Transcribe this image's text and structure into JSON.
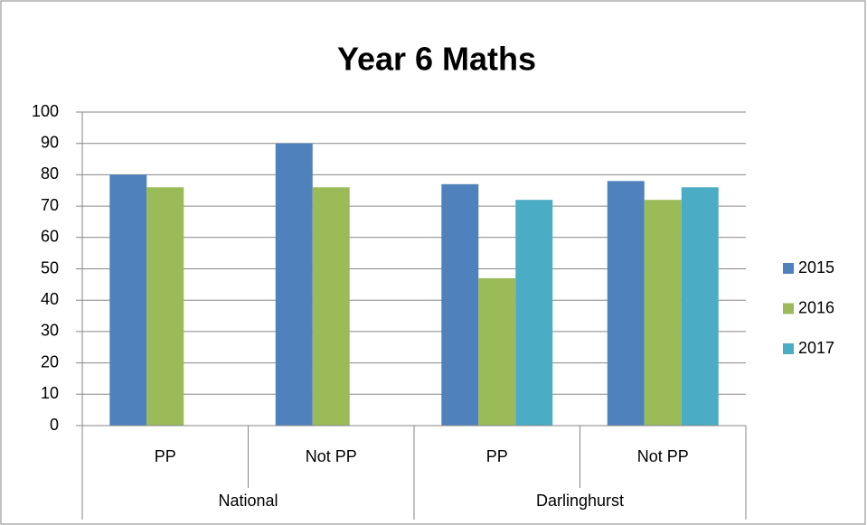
{
  "chart_data": {
    "type": "bar",
    "title": "Year 6 Maths",
    "groups": [
      {
        "name": "National",
        "categories": [
          "PP",
          "Not PP"
        ]
      },
      {
        "name": "Darlinghurst",
        "categories": [
          "PP",
          "Not PP"
        ]
      }
    ],
    "series": [
      {
        "name": "2015",
        "color": "#4f81bd",
        "values": [
          80,
          90,
          77,
          78
        ]
      },
      {
        "name": "2016",
        "color": "#9bbb59",
        "values": [
          76,
          76,
          47,
          72
        ]
      },
      {
        "name": "2017",
        "color": "#4bacc6",
        "values": [
          null,
          null,
          72,
          76
        ]
      }
    ],
    "ylim": [
      0,
      100
    ],
    "yticks": [
      0,
      10,
      20,
      30,
      40,
      50,
      60,
      70,
      80,
      90,
      100
    ],
    "grid": true,
    "legend": "right"
  }
}
